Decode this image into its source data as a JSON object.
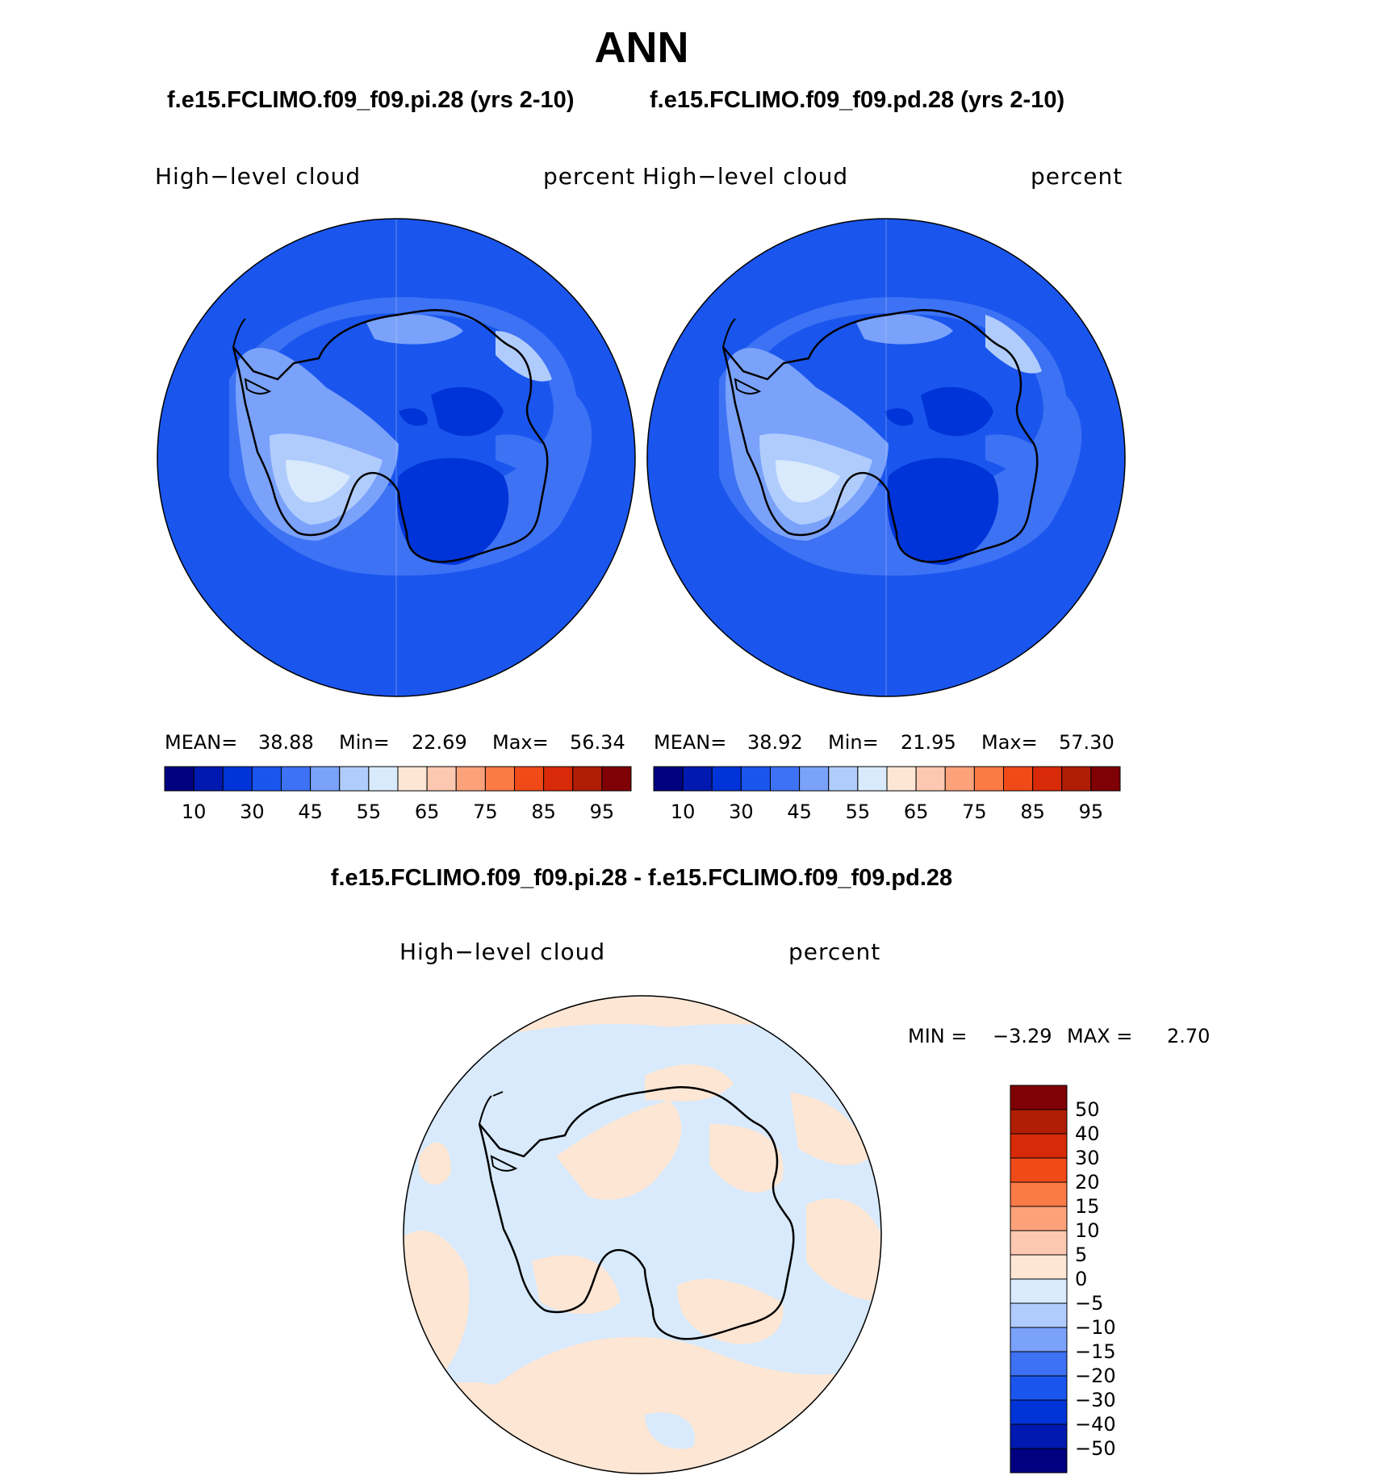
{
  "page_title": "ANN",
  "panels": {
    "left": {
      "case_title": "f.e15.FCLIMO.f09_f09.pi.28 (yrs 2-10)",
      "variable": "High−level  cloud",
      "units": "percent",
      "mean_label": "MEAN=",
      "mean": "38.88",
      "min_label": "Min=",
      "min": "22.69",
      "max_label": "Max=",
      "max": "56.34"
    },
    "right": {
      "case_title": "f.e15.FCLIMO.f09_f09.pd.28 (yrs 2-10)",
      "variable": "High−level  cloud",
      "units": "percent",
      "mean_label": "MEAN=",
      "mean": "38.92",
      "min_label": "Min=",
      "min": "21.95",
      "max_label": "Max=",
      "max": "57.30"
    },
    "difference": {
      "title": "f.e15.FCLIMO.f09_f09.pi.28 - f.e15.FCLIMO.f09_f09.pd.28",
      "variable": "High−level  cloud",
      "units": "percent",
      "min_label": "MIN =",
      "min": "−3.29",
      "max_label": "MAX =",
      "max": "2.70"
    }
  },
  "colorbar_abs": {
    "colors": [
      "#000080",
      "#0019b0",
      "#0034d8",
      "#1a56ee",
      "#3d72f4",
      "#7aa2fb",
      "#b0ccfd",
      "#d8eafc",
      "#fde6d4",
      "#fdc8b0",
      "#fca27a",
      "#fc7a46",
      "#f04a18",
      "#d82a08",
      "#b01e05",
      "#7f0005"
    ],
    "tick_labels": [
      "10",
      "30",
      "45",
      "55",
      "65",
      "75",
      "85",
      "95"
    ]
  },
  "colorbar_diff": {
    "colors_top_to_bottom": [
      "#7f0005",
      "#b01e05",
      "#d82a08",
      "#f04a18",
      "#fc7a46",
      "#fca27a",
      "#fdc8b0",
      "#fde6d4",
      "#d8eafc",
      "#b0ccfd",
      "#7aa2fb",
      "#3d72f4",
      "#1a56ee",
      "#0034d8",
      "#0019b0",
      "#000080"
    ],
    "tick_labels_top_to_bottom": [
      "50",
      "40",
      "30",
      "20",
      "15",
      "10",
      "5",
      "0",
      "−5",
      "−10",
      "−15",
      "−20",
      "−30",
      "−40",
      "−50"
    ]
  }
}
